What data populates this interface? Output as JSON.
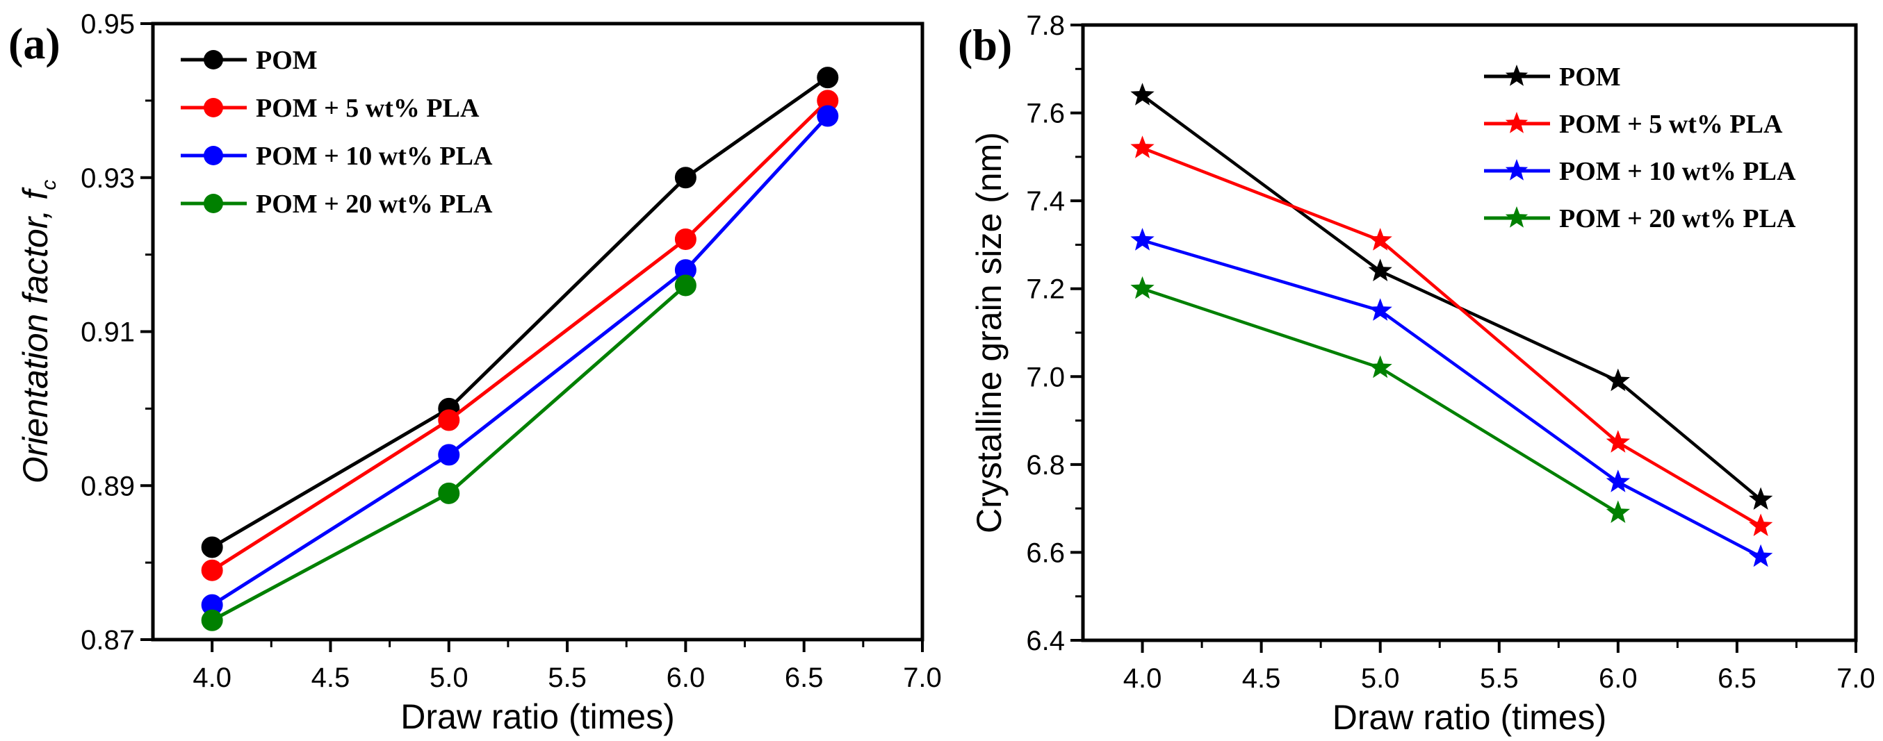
{
  "chart_data": [
    {
      "type": "line",
      "panel_label": "(a)",
      "xlabel": "Draw ratio (times)",
      "ylabel": "Orientation factor, f",
      "ylabel_subscript": "c",
      "xlim": [
        3.75,
        7.0
      ],
      "ylim": [
        0.87,
        0.95
      ],
      "xticks": [
        "4.0",
        "4.5",
        "5.0",
        "5.5",
        "6.0",
        "6.5",
        "7.0"
      ],
      "yticks": [
        "0.87",
        "0.89",
        "0.91",
        "0.93",
        "0.95"
      ],
      "grid": false,
      "legend_position": "top-left",
      "marker": "circle",
      "series": [
        {
          "name": "POM",
          "color": "#000000",
          "x": [
            4.0,
            5.0,
            6.0,
            6.6
          ],
          "y": [
            0.882,
            0.9,
            0.93,
            0.943
          ]
        },
        {
          "name": "POM + 5 wt% PLA",
          "color": "#ff0000",
          "x": [
            4.0,
            5.0,
            6.0,
            6.6
          ],
          "y": [
            0.879,
            0.8985,
            0.922,
            0.94
          ]
        },
        {
          "name": "POM + 10 wt% PLA",
          "color": "#0000ff",
          "x": [
            4.0,
            5.0,
            6.0,
            6.6
          ],
          "y": [
            0.8745,
            0.894,
            0.918,
            0.938
          ]
        },
        {
          "name": "POM + 20 wt% PLA",
          "color": "#008000",
          "x": [
            4.0,
            5.0,
            6.0
          ],
          "y": [
            0.8725,
            0.889,
            0.916
          ]
        }
      ]
    },
    {
      "type": "line",
      "panel_label": "(b)",
      "xlabel": "Draw ratio (times)",
      "ylabel": "Crystalline grain size (nm)",
      "xlim": [
        3.75,
        7.0
      ],
      "ylim": [
        6.4,
        7.8
      ],
      "xticks": [
        "4.0",
        "4.5",
        "5.0",
        "5.5",
        "6.0",
        "6.5",
        "7.0"
      ],
      "yticks": [
        "6.4",
        "6.6",
        "6.8",
        "7.0",
        "7.2",
        "7.4",
        "7.6",
        "7.8"
      ],
      "grid": false,
      "legend_position": "top-right",
      "marker": "star",
      "series": [
        {
          "name": "POM",
          "color": "#000000",
          "x": [
            4.0,
            5.0,
            6.0,
            6.6
          ],
          "y": [
            7.64,
            7.24,
            6.99,
            6.72
          ]
        },
        {
          "name": "POM + 5 wt% PLA",
          "color": "#ff0000",
          "x": [
            4.0,
            5.0,
            6.0,
            6.6
          ],
          "y": [
            7.52,
            7.31,
            6.85,
            6.66
          ]
        },
        {
          "name": "POM + 10 wt% PLA",
          "color": "#0000ff",
          "x": [
            4.0,
            5.0,
            6.0,
            6.6
          ],
          "y": [
            7.31,
            7.15,
            6.76,
            6.59
          ]
        },
        {
          "name": "POM + 20 wt% PLA",
          "color": "#008000",
          "x": [
            4.0,
            5.0,
            6.0
          ],
          "y": [
            7.2,
            7.02,
            6.69
          ]
        }
      ]
    }
  ]
}
